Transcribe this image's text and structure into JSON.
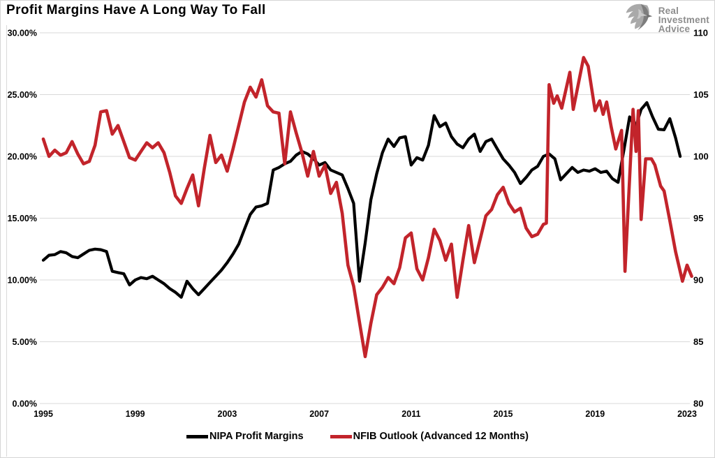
{
  "header": {
    "title": "Profit Margins Have A Long Way To Fall"
  },
  "logo": {
    "lines": [
      "Real",
      "Investment",
      "Advice"
    ]
  },
  "legend": {
    "items": [
      {
        "label": "NIPA Profit Margins",
        "color": "#000000"
      },
      {
        "label": "NFIB Outlook (Advanced 12 Months)",
        "color": "#C2242B"
      }
    ]
  },
  "colors": {
    "background": "#FFFFFF",
    "grid": "#D9D9D9",
    "border": "#D5D5D5",
    "axis_text": "#000000",
    "nipa_line": "#000000",
    "nfib_line": "#C2242B",
    "logo_gray": "#8D8D8D"
  },
  "chart_data": {
    "type": "line",
    "title": "Profit Margins Have A Long Way To Fall",
    "grid": "horizontal",
    "legend_position": "bottom",
    "left_axis": {
      "min": 0,
      "max": 30,
      "tick_labels": [
        "30.00%",
        "25.00%",
        "20.00%",
        "15.00%",
        "10.00%",
        "5.00%",
        "0.00%"
      ],
      "tick_values": [
        30,
        25,
        20,
        15,
        10,
        5,
        0
      ]
    },
    "right_axis": {
      "min": 80,
      "max": 110,
      "tick_labels": [
        "110",
        "105",
        "100",
        "95",
        "90",
        "85",
        "80"
      ],
      "tick_values": [
        110,
        105,
        100,
        95,
        90,
        85,
        80
      ]
    },
    "x_axis": {
      "min": 1995,
      "max": 2023.3,
      "tick_labels": [
        "1995",
        "1999",
        "2003",
        "2007",
        "2011",
        "2015",
        "2019",
        "2023"
      ],
      "tick_values": [
        1995,
        1999,
        2003,
        2007,
        2011,
        2015,
        2019,
        2023
      ]
    },
    "series": [
      {
        "name": "NIPA Profit Margins",
        "axis": "left",
        "color": "#000000",
        "stroke_width": 4.2,
        "points": [
          [
            1995,
            11.6
          ],
          [
            1995.25,
            12
          ],
          [
            1995.5,
            12.05
          ],
          [
            1995.75,
            12.3
          ],
          [
            1996,
            12.2
          ],
          [
            1996.25,
            11.9
          ],
          [
            1996.5,
            11.8
          ],
          [
            1996.75,
            12.1
          ],
          [
            1997,
            12.4
          ],
          [
            1997.25,
            12.5
          ],
          [
            1997.5,
            12.45
          ],
          [
            1997.75,
            12.3
          ],
          [
            1998,
            10.7
          ],
          [
            1998.25,
            10.6
          ],
          [
            1998.5,
            10.5
          ],
          [
            1998.75,
            9.6
          ],
          [
            1999,
            10
          ],
          [
            1999.25,
            10.2
          ],
          [
            1999.5,
            10.1
          ],
          [
            1999.75,
            10.3
          ],
          [
            2000,
            10
          ],
          [
            2000.25,
            9.7
          ],
          [
            2000.5,
            9.3
          ],
          [
            2000.75,
            9
          ],
          [
            2001,
            8.6
          ],
          [
            2001.25,
            9.9
          ],
          [
            2001.5,
            9.3
          ],
          [
            2001.75,
            8.8
          ],
          [
            2002,
            9.3
          ],
          [
            2002.25,
            9.8
          ],
          [
            2002.5,
            10.3
          ],
          [
            2002.75,
            10.8
          ],
          [
            2003,
            11.4
          ],
          [
            2003.25,
            12.1
          ],
          [
            2003.5,
            12.9
          ],
          [
            2003.75,
            14.1
          ],
          [
            2004,
            15.3
          ],
          [
            2004.25,
            15.9
          ],
          [
            2004.5,
            16
          ],
          [
            2004.75,
            16.2
          ],
          [
            2005,
            18.9
          ],
          [
            2005.25,
            19.1
          ],
          [
            2005.5,
            19.4
          ],
          [
            2005.75,
            19.6
          ],
          [
            2006,
            20.1
          ],
          [
            2006.25,
            20.4
          ],
          [
            2006.5,
            20.2
          ],
          [
            2006.75,
            19.8
          ],
          [
            2007,
            19.3
          ],
          [
            2007.25,
            19.5
          ],
          [
            2007.5,
            18.9
          ],
          [
            2007.75,
            18.7
          ],
          [
            2008,
            18.5
          ],
          [
            2008.25,
            17.4
          ],
          [
            2008.5,
            16.2
          ],
          [
            2008.75,
            9.9
          ],
          [
            2009,
            13
          ],
          [
            2009.25,
            16.5
          ],
          [
            2009.5,
            18.6
          ],
          [
            2009.75,
            20.3
          ],
          [
            2010,
            21.4
          ],
          [
            2010.25,
            20.8
          ],
          [
            2010.5,
            21.5
          ],
          [
            2010.75,
            21.6
          ],
          [
            2011,
            19.3
          ],
          [
            2011.25,
            19.9
          ],
          [
            2011.5,
            19.7
          ],
          [
            2011.75,
            20.9
          ],
          [
            2012,
            23.3
          ],
          [
            2012.25,
            22.4
          ],
          [
            2012.5,
            22.7
          ],
          [
            2012.75,
            21.6
          ],
          [
            2013,
            21
          ],
          [
            2013.25,
            20.7
          ],
          [
            2013.5,
            21.4
          ],
          [
            2013.75,
            21.8
          ],
          [
            2014,
            20.4
          ],
          [
            2014.25,
            21.2
          ],
          [
            2014.5,
            21.4
          ],
          [
            2014.75,
            20.6
          ],
          [
            2015,
            19.8
          ],
          [
            2015.25,
            19.3
          ],
          [
            2015.5,
            18.7
          ],
          [
            2015.75,
            17.8
          ],
          [
            2016,
            18.3
          ],
          [
            2016.25,
            18.9
          ],
          [
            2016.5,
            19.2
          ],
          [
            2016.75,
            20
          ],
          [
            2017,
            20.2
          ],
          [
            2017.25,
            19.8
          ],
          [
            2017.5,
            18.1
          ],
          [
            2017.75,
            18.6
          ],
          [
            2018,
            19.1
          ],
          [
            2018.25,
            18.7
          ],
          [
            2018.5,
            18.9
          ],
          [
            2018.75,
            18.8
          ],
          [
            2019,
            19
          ],
          [
            2019.25,
            18.7
          ],
          [
            2019.5,
            18.8
          ],
          [
            2019.75,
            18.2
          ],
          [
            2020,
            17.9
          ],
          [
            2020.25,
            20.5
          ],
          [
            2020.5,
            23.2
          ],
          [
            2020.75,
            22.3
          ],
          [
            2021,
            23.8
          ],
          [
            2021.25,
            24.35
          ],
          [
            2021.5,
            23.2
          ],
          [
            2021.75,
            22.2
          ],
          [
            2022,
            22.15
          ],
          [
            2022.25,
            23.05
          ],
          [
            2022.5,
            21.5
          ],
          [
            2022.7,
            20
          ]
        ]
      },
      {
        "name": "NFIB Outlook (Advanced 12 Months)",
        "axis": "right",
        "color": "#C2242B",
        "stroke_width": 4.6,
        "points": [
          [
            1995,
            101.4
          ],
          [
            1995.25,
            100
          ],
          [
            1995.5,
            100.5
          ],
          [
            1995.75,
            100.1
          ],
          [
            1996,
            100.3
          ],
          [
            1996.25,
            101.2
          ],
          [
            1996.5,
            100.2
          ],
          [
            1996.75,
            99.4
          ],
          [
            1997,
            99.6
          ],
          [
            1997.25,
            100.9
          ],
          [
            1997.5,
            103.6
          ],
          [
            1997.75,
            103.7
          ],
          [
            1998,
            101.8
          ],
          [
            1998.25,
            102.5
          ],
          [
            1998.5,
            101.2
          ],
          [
            1998.75,
            99.9
          ],
          [
            1999,
            99.7
          ],
          [
            1999.25,
            100.4
          ],
          [
            1999.5,
            101.1
          ],
          [
            1999.75,
            100.7
          ],
          [
            2000,
            101.1
          ],
          [
            2000.25,
            100.3
          ],
          [
            2000.5,
            98.7
          ],
          [
            2000.75,
            96.8
          ],
          [
            2001,
            96.2
          ],
          [
            2001.25,
            97.4
          ],
          [
            2001.5,
            98.5
          ],
          [
            2001.75,
            96
          ],
          [
            2002,
            99
          ],
          [
            2002.25,
            101.7
          ],
          [
            2002.5,
            99.5
          ],
          [
            2002.75,
            100.1
          ],
          [
            2003,
            98.8
          ],
          [
            2003.25,
            100.6
          ],
          [
            2003.5,
            102.5
          ],
          [
            2003.75,
            104.4
          ],
          [
            2004,
            105.6
          ],
          [
            2004.25,
            104.8
          ],
          [
            2004.5,
            106.2
          ],
          [
            2004.75,
            104.1
          ],
          [
            2005,
            103.6
          ],
          [
            2005.25,
            103.5
          ],
          [
            2005.5,
            99.4
          ],
          [
            2005.75,
            103.6
          ],
          [
            2006,
            101.9
          ],
          [
            2006.25,
            100.3
          ],
          [
            2006.5,
            98.4
          ],
          [
            2006.75,
            100.4
          ],
          [
            2007,
            98.4
          ],
          [
            2007.25,
            99.3
          ],
          [
            2007.5,
            97
          ],
          [
            2007.75,
            97.9
          ],
          [
            2008,
            95.4
          ],
          [
            2008.25,
            91.2
          ],
          [
            2008.5,
            89.5
          ],
          [
            2008.75,
            86.6
          ],
          [
            2009,
            83.8
          ],
          [
            2009.25,
            86.5
          ],
          [
            2009.5,
            88.8
          ],
          [
            2009.75,
            89.4
          ],
          [
            2010,
            90.2
          ],
          [
            2010.25,
            89.7
          ],
          [
            2010.5,
            91
          ],
          [
            2010.75,
            93.4
          ],
          [
            2011,
            93.8
          ],
          [
            2011.25,
            90.9
          ],
          [
            2011.5,
            90
          ],
          [
            2011.75,
            91.8
          ],
          [
            2012,
            94.1
          ],
          [
            2012.25,
            93.2
          ],
          [
            2012.5,
            91.6
          ],
          [
            2012.75,
            92.9
          ],
          [
            2013,
            88.6
          ],
          [
            2013.25,
            91.6
          ],
          [
            2013.5,
            94.4
          ],
          [
            2013.75,
            91.4
          ],
          [
            2014,
            93.3
          ],
          [
            2014.25,
            95.2
          ],
          [
            2014.5,
            95.7
          ],
          [
            2014.75,
            96.9
          ],
          [
            2015,
            97.5
          ],
          [
            2015.25,
            96.2
          ],
          [
            2015.5,
            95.5
          ],
          [
            2015.75,
            95.8
          ],
          [
            2016,
            94.2
          ],
          [
            2016.25,
            93.5
          ],
          [
            2016.5,
            93.7
          ],
          [
            2016.75,
            94.5
          ],
          [
            2016.88,
            94.6
          ],
          [
            2017,
            105.8
          ],
          [
            2017.2,
            104.3
          ],
          [
            2017.35,
            104.9
          ],
          [
            2017.55,
            103.9
          ],
          [
            2017.9,
            106.8
          ],
          [
            2018.05,
            103.8
          ],
          [
            2018.5,
            108
          ],
          [
            2018.7,
            107.3
          ],
          [
            2018.9,
            104.9
          ],
          [
            2019,
            103.7
          ],
          [
            2019.2,
            104.5
          ],
          [
            2019.35,
            103.4
          ],
          [
            2019.5,
            104.4
          ],
          [
            2019.7,
            102.4
          ],
          [
            2019.9,
            100.6
          ],
          [
            2020.15,
            102.1
          ],
          [
            2020.3,
            90.7
          ],
          [
            2020.65,
            103.8
          ],
          [
            2020.78,
            100.4
          ],
          [
            2020.88,
            103.7
          ],
          [
            2021,
            94.9
          ],
          [
            2021.2,
            99.8
          ],
          [
            2021.45,
            99.8
          ],
          [
            2021.6,
            99.3
          ],
          [
            2021.85,
            97.6
          ],
          [
            2022,
            97.2
          ],
          [
            2022.25,
            94.8
          ],
          [
            2022.5,
            92.3
          ],
          [
            2022.8,
            89.9
          ],
          [
            2023,
            91.2
          ],
          [
            2023.2,
            90.3
          ]
        ]
      }
    ]
  }
}
